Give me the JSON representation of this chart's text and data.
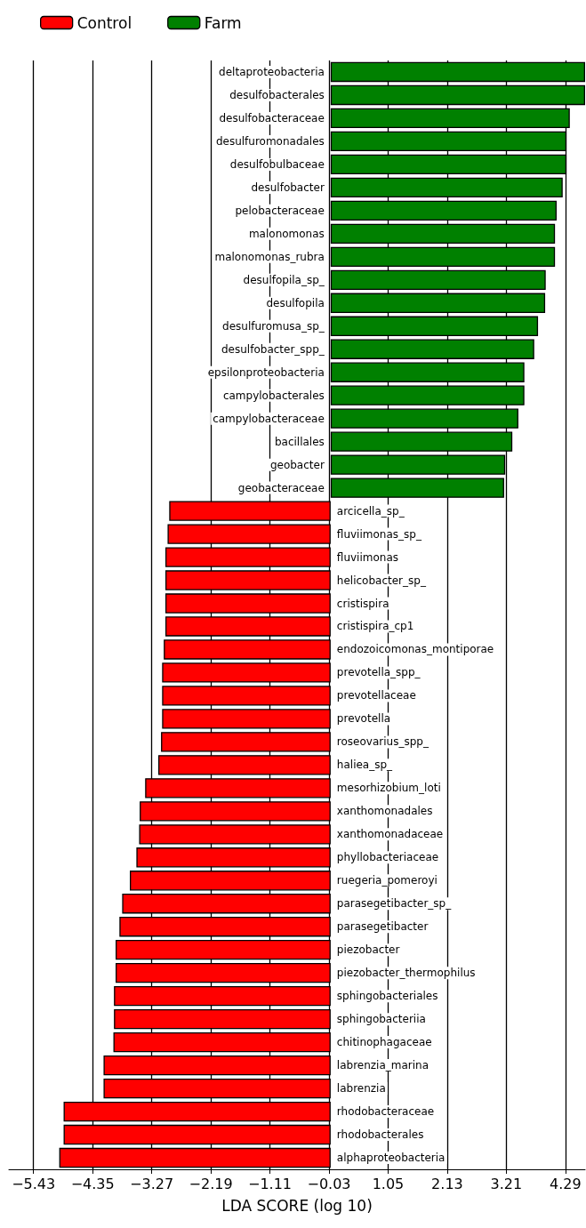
{
  "chart_data": {
    "type": "bar",
    "orientation": "horizontal",
    "xlabel": "LDA SCORE (log 10)",
    "categories": [
      "deltaproteobacteria",
      "desulfobacterales",
      "desulfobacteraceae",
      "desulfuromonadales",
      "desulfobulbaceae",
      "desulfobacter",
      "pelobacteraceae",
      "malonomonas",
      "malonomonas_rubra",
      "desulfopila_sp_",
      "desulfopila",
      "desulfuromusa_sp_",
      "desulfobacter_spp_",
      "epsilonproteobacteria",
      "campylobacterales",
      "campylobacteraceae",
      "bacillales",
      "geobacter",
      "geobacteraceae",
      "arcicella_sp_",
      "fluviimonas_sp_",
      "fluviimonas",
      "helicobacter_sp_",
      "cristispira",
      "cristispira_cp1",
      "endozoicomonas_montiporae",
      "prevotella_spp_",
      "prevotellaceae",
      "prevotella",
      "roseovarius_spp_",
      "haliea_sp_",
      "mesorhizobium_loti",
      "xanthomonadales",
      "xanthomonadaceae",
      "phyllobacteriaceae",
      "ruegeria_pomeroyi",
      "parasegetibacter_sp_",
      "parasegetibacter",
      "piezobacter",
      "piezobacter_thermophilus",
      "sphingobacteriales",
      "sphingobacteriia",
      "chitinophagaceae",
      "labrenzia_marina",
      "labrenzia",
      "rhodobacteraceae",
      "rhodobacterales",
      "alphaproteobacteria"
    ],
    "series": [
      {
        "name": "Control",
        "color": "#ff0000",
        "values": [
          null,
          null,
          null,
          null,
          null,
          null,
          null,
          null,
          null,
          null,
          null,
          null,
          null,
          null,
          null,
          null,
          null,
          null,
          null,
          -2.95,
          -2.98,
          -3.02,
          -3.02,
          -3.02,
          -3.02,
          -3.05,
          -3.08,
          -3.08,
          -3.08,
          -3.1,
          -3.15,
          -3.39,
          -3.49,
          -3.5,
          -3.55,
          -3.67,
          -3.81,
          -3.86,
          -3.93,
          -3.93,
          -3.96,
          -3.96,
          -3.97,
          -4.15,
          -4.15,
          -4.88,
          -4.88,
          -4.96
        ]
      },
      {
        "name": "Farm",
        "color": "#008000",
        "values": [
          4.65,
          4.65,
          4.37,
          4.31,
          4.31,
          4.24,
          4.13,
          4.1,
          4.1,
          3.93,
          3.92,
          3.79,
          3.72,
          3.54,
          3.54,
          3.43,
          3.32,
          3.19,
          3.17,
          null,
          null,
          null,
          null,
          null,
          null,
          null,
          null,
          null,
          null,
          null,
          null,
          null,
          null,
          null,
          null,
          null,
          null,
          null,
          null,
          null,
          null,
          null,
          null,
          null,
          null,
          null,
          null,
          null
        ]
      }
    ],
    "xlim": [
      -5.88,
      4.65
    ],
    "xticks": [
      {
        "value": -5.43,
        "label": "−5.43"
      },
      {
        "value": -4.35,
        "label": "−4.35"
      },
      {
        "value": -3.27,
        "label": "−3.27"
      },
      {
        "value": -2.19,
        "label": "−2.19"
      },
      {
        "value": -1.11,
        "label": "−1.11"
      },
      {
        "value": -0.03,
        "label": "−0.03"
      },
      1.05,
      2.13,
      3.21,
      4.29
    ],
    "grid": "x",
    "legend": "top left"
  }
}
